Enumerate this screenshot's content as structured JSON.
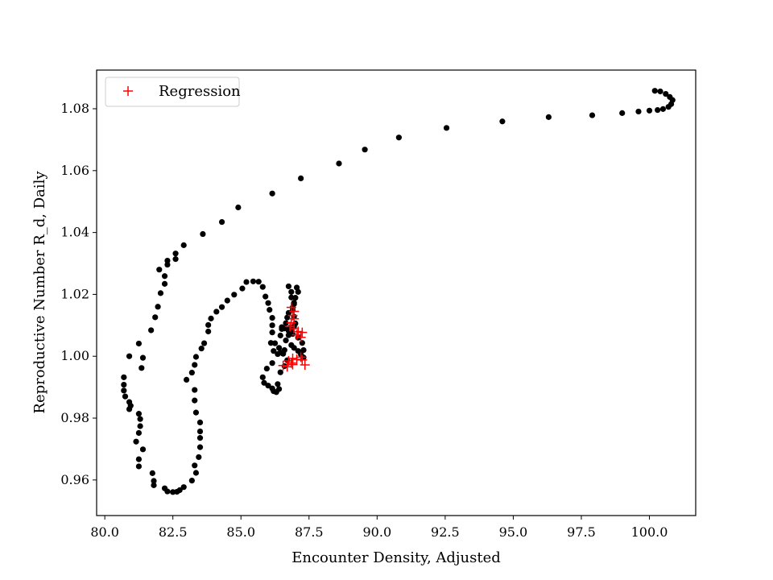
{
  "chart_data": {
    "type": "scatter",
    "title": "",
    "xlabel": "Encounter Density, Adjusted",
    "ylabel": "Reproductive Number R_d, Daily",
    "xlim": [
      79.7,
      101.7
    ],
    "ylim": [
      0.9485,
      1.0925
    ],
    "xticks": [
      80.0,
      82.5,
      85.0,
      87.5,
      90.0,
      92.5,
      95.0,
      97.5,
      100.0
    ],
    "xtick_labels": [
      "80.0",
      "82.5",
      "85.0",
      "87.5",
      "90.0",
      "92.5",
      "95.0",
      "97.5",
      "100.0"
    ],
    "yticks": [
      0.96,
      0.98,
      1.0,
      1.02,
      1.04,
      1.06,
      1.08
    ],
    "ytick_labels": [
      "0.96",
      "0.98",
      "1.00",
      "1.02",
      "1.04",
      "1.06",
      "1.08"
    ],
    "grid": false,
    "legend": {
      "position": "top-left",
      "entries": [
        "Regression"
      ]
    },
    "series": [
      {
        "marker": "dot",
        "color": "#000000",
        "points": [
          [
            100.2,
            1.0858
          ],
          [
            100.4,
            1.0856
          ],
          [
            100.6,
            1.0848
          ],
          [
            100.75,
            1.0838
          ],
          [
            100.85,
            1.0828
          ],
          [
            100.8,
            1.0815
          ],
          [
            100.7,
            1.0806
          ],
          [
            100.5,
            1.0799
          ],
          [
            100.3,
            1.0796
          ],
          [
            100.0,
            1.0794
          ],
          [
            99.6,
            1.0791
          ],
          [
            99.0,
            1.0786
          ],
          [
            97.9,
            1.0779
          ],
          [
            96.3,
            1.0773
          ],
          [
            94.6,
            1.0759
          ],
          [
            92.55,
            1.0738
          ],
          [
            90.8,
            1.0707
          ],
          [
            89.55,
            1.0668
          ],
          [
            88.6,
            1.0623
          ],
          [
            87.2,
            1.0575
          ],
          [
            86.15,
            1.0526
          ],
          [
            84.9,
            1.0481
          ],
          [
            84.3,
            1.0434
          ],
          [
            83.6,
            1.0395
          ],
          [
            82.9,
            1.0359
          ],
          [
            82.6,
            1.0332
          ],
          [
            82.6,
            1.0314
          ],
          [
            82.3,
            1.0296
          ],
          [
            82.3,
            1.0309
          ],
          [
            82.0,
            1.028
          ],
          [
            82.2,
            1.0259
          ],
          [
            82.2,
            1.0234
          ],
          [
            82.05,
            1.0204
          ],
          [
            81.95,
            1.016
          ],
          [
            81.85,
            1.0126
          ],
          [
            81.7,
            1.0084
          ],
          [
            81.25,
            1.0041
          ],
          [
            81.4,
            0.9995
          ],
          [
            81.35,
            0.9962
          ],
          [
            80.9,
            1.0
          ],
          [
            80.7,
            0.9932
          ],
          [
            80.7,
            0.9908
          ],
          [
            80.7,
            0.9889
          ],
          [
            80.75,
            0.987
          ],
          [
            80.9,
            0.9852
          ],
          [
            80.95,
            0.984
          ],
          [
            80.9,
            0.9829
          ],
          [
            81.25,
            0.9814
          ],
          [
            81.3,
            0.9797
          ],
          [
            81.3,
            0.9774
          ],
          [
            81.25,
            0.9752
          ],
          [
            81.15,
            0.9724
          ],
          [
            81.4,
            0.9699
          ],
          [
            81.25,
            0.9667
          ],
          [
            81.25,
            0.9644
          ],
          [
            81.75,
            0.9622
          ],
          [
            81.8,
            0.9597
          ],
          [
            81.8,
            0.9583
          ],
          [
            82.2,
            0.9573
          ],
          [
            82.3,
            0.9563
          ],
          [
            82.5,
            0.9561
          ],
          [
            82.65,
            0.9562
          ],
          [
            82.75,
            0.9567
          ],
          [
            82.9,
            0.9577
          ],
          [
            83.2,
            0.9598
          ],
          [
            83.35,
            0.9623
          ],
          [
            83.3,
            0.9647
          ],
          [
            83.45,
            0.9674
          ],
          [
            83.5,
            0.9706
          ],
          [
            83.5,
            0.9736
          ],
          [
            83.5,
            0.9757
          ],
          [
            83.5,
            0.9786
          ],
          [
            83.35,
            0.9818
          ],
          [
            83.3,
            0.9857
          ],
          [
            83.3,
            0.9891
          ],
          [
            83.0,
            0.9924
          ],
          [
            83.2,
            0.9947
          ],
          [
            83.3,
            0.9972
          ],
          [
            83.35,
            0.9998
          ],
          [
            83.55,
            1.0025
          ],
          [
            83.65,
            1.0042
          ],
          [
            83.8,
            1.008
          ],
          [
            83.8,
            1.0101
          ],
          [
            83.9,
            1.0122
          ],
          [
            84.1,
            1.0144
          ],
          [
            84.3,
            1.0159
          ],
          [
            84.5,
            1.018
          ],
          [
            84.75,
            1.0199
          ],
          [
            85.05,
            1.0219
          ],
          [
            85.2,
            1.024
          ],
          [
            85.45,
            1.0242
          ],
          [
            85.65,
            1.0241
          ],
          [
            85.8,
            1.0224
          ],
          [
            85.9,
            1.0193
          ],
          [
            86.0,
            1.0172
          ],
          [
            86.05,
            1.015
          ],
          [
            86.15,
            1.0124
          ],
          [
            86.15,
            1.01
          ],
          [
            86.15,
            1.0077
          ],
          [
            86.1,
            1.0043
          ],
          [
            86.2,
            1.0017
          ],
          [
            86.35,
            1.0007
          ],
          [
            86.15,
            0.9978
          ],
          [
            85.95,
            0.996
          ],
          [
            85.8,
            0.9932
          ],
          [
            85.85,
            0.9914
          ],
          [
            86.0,
            0.9905
          ],
          [
            86.15,
            0.9896
          ],
          [
            86.2,
            0.9887
          ],
          [
            86.3,
            0.9884
          ],
          [
            86.4,
            0.9894
          ],
          [
            86.35,
            0.991
          ],
          [
            86.45,
            0.9948
          ],
          [
            86.6,
            0.9968
          ],
          [
            86.7,
            0.9987
          ],
          [
            86.55,
            1.0008
          ],
          [
            86.4,
            1.0027
          ],
          [
            86.25,
            1.0042
          ],
          [
            86.45,
            1.0067
          ],
          [
            86.5,
            1.0088
          ],
          [
            86.65,
            1.0107
          ],
          [
            86.7,
            1.0125
          ],
          [
            86.75,
            1.014
          ],
          [
            86.9,
            1.0158
          ],
          [
            86.95,
            1.0173
          ],
          [
            86.85,
            1.019
          ],
          [
            86.85,
            1.0208
          ],
          [
            86.75,
            1.0226
          ],
          [
            87.05,
            1.0222
          ],
          [
            87.1,
            1.0208
          ],
          [
            87.0,
            1.0189
          ],
          [
            86.95,
            1.0169
          ],
          [
            86.9,
            1.0149
          ],
          [
            86.95,
            1.0128
          ],
          [
            87.0,
            1.0106
          ],
          [
            86.85,
            1.0085
          ],
          [
            86.75,
            1.0068
          ],
          [
            86.65,
            1.0051
          ],
          [
            86.85,
            1.0036
          ],
          [
            86.95,
            1.0027
          ],
          [
            87.1,
            1.0017
          ],
          [
            87.2,
            1.0006
          ],
          [
            87.3,
            0.9996
          ],
          [
            87.3,
            1.002
          ],
          [
            87.25,
            1.0043
          ],
          [
            87.1,
            1.006
          ],
          [
            86.9,
            1.0072
          ],
          [
            86.75,
            1.0082
          ],
          [
            86.6,
            1.009
          ],
          [
            86.5,
            1.0094
          ],
          [
            86.8,
            1.0092
          ],
          [
            86.95,
            1.0096
          ],
          [
            86.6,
            1.002
          ],
          [
            86.45,
            1.0012
          ]
        ]
      },
      {
        "name": "Regression",
        "marker": "plus",
        "color": "#ff0000",
        "points": [
          [
            86.85,
            1.0158
          ],
          [
            86.95,
            1.0145
          ],
          [
            86.9,
            1.0132
          ],
          [
            86.95,
            1.0121
          ],
          [
            86.85,
            1.0108
          ],
          [
            86.8,
            1.0096
          ],
          [
            86.95,
            1.0089
          ],
          [
            87.1,
            1.008
          ],
          [
            87.25,
            1.0077
          ],
          [
            87.05,
            1.0069
          ],
          [
            87.2,
            1.0061
          ],
          [
            86.75,
            0.9985
          ],
          [
            86.85,
            0.9978
          ],
          [
            86.55,
            0.997
          ],
          [
            86.7,
            0.9966
          ],
          [
            86.9,
            0.9973
          ],
          [
            87.05,
            0.999
          ],
          [
            87.2,
            0.9997
          ],
          [
            87.25,
            0.9988
          ],
          [
            87.35,
            0.9972
          ],
          [
            86.9,
            0.9993
          ]
        ]
      }
    ]
  }
}
